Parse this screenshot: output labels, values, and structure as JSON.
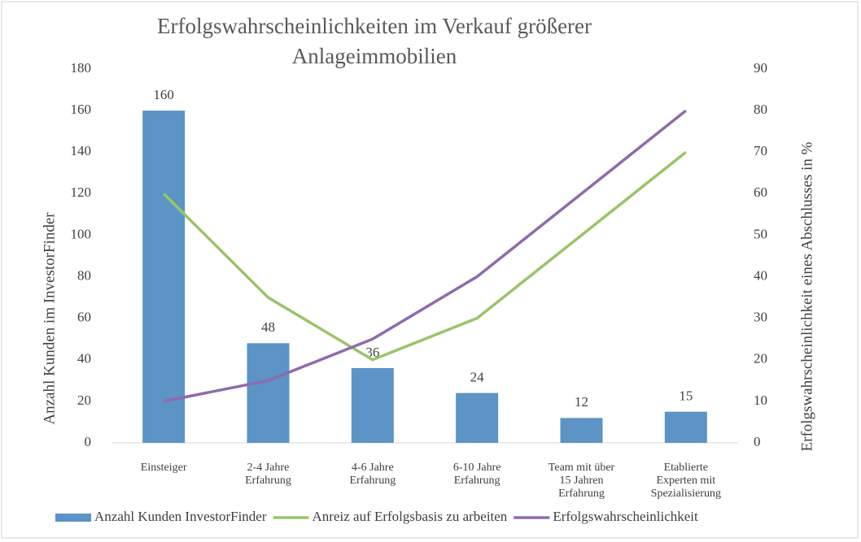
{
  "chart_data": {
    "type": "bar-line",
    "title": "Erfolgswahrscheinlichkeiten im Verkauf größerer\nAnlageimmobilien",
    "y_label": "Anzahl Kunden im InvestorFinder",
    "y2_label": "Erfolgswahrscheinlichkeit eines Abschlusses in %",
    "categories": [
      "Einsteiger",
      "2-4 Jahre\nErfahrung",
      "4-6 Jahre\nErfahrung",
      "6-10 Jahre\nErfahrung",
      "Team mit über\n15 Jahren\nErfahrung",
      "Etablierte\nExperten mit\nSpezialisierung"
    ],
    "series": [
      {
        "name": "Anzahl Kunden InvestorFinder",
        "color": "#5b94c5",
        "kind": "bar",
        "values": [
          160,
          48,
          36,
          24,
          12,
          15
        ]
      },
      {
        "name": "Anreiz auf Erfolgsbasis zu arbeiten",
        "color": "#9bc36a",
        "kind": "line",
        "axis": "y2",
        "values": [
          60,
          35,
          20,
          30,
          50,
          70
        ]
      },
      {
        "name": "Erfolgswahrscheinlichkeit",
        "color": "#8e6bad",
        "kind": "line",
        "axis": "y2",
        "values": [
          10,
          15,
          25,
          40,
          60,
          80
        ]
      }
    ],
    "ylim": [
      0,
      180
    ],
    "yticks": [
      0,
      20,
      40,
      60,
      80,
      100,
      120,
      140,
      160,
      180
    ],
    "y2lim": [
      0,
      90
    ],
    "y2ticks": [
      0,
      10,
      20,
      30,
      40,
      50,
      60,
      70,
      80,
      90
    ],
    "grid": false,
    "legend": "bottom"
  }
}
